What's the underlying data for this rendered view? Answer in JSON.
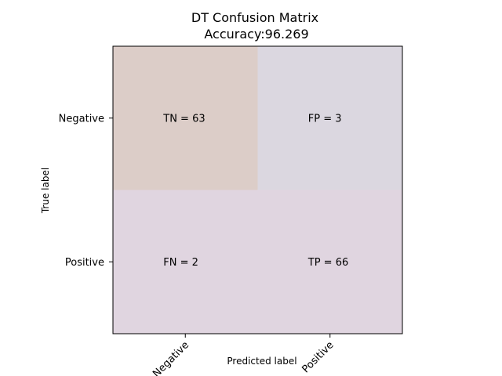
{
  "chart_data": {
    "type": "heatmap",
    "title": "DT Confusion Matrix",
    "subtitle": "Accuracy:96.269",
    "xlabel": "Predicted label",
    "ylabel": "True label",
    "x_categories": [
      "Negative",
      "Positive"
    ],
    "y_categories": [
      "Negative",
      "Positive"
    ],
    "cell_labels": [
      [
        "TN",
        "FP"
      ],
      [
        "FN",
        "TP"
      ]
    ],
    "values": [
      [
        63,
        3
      ],
      [
        2,
        66
      ]
    ],
    "cell_texts": [
      [
        "TN = 63",
        "FP = 3"
      ],
      [
        "FN = 2",
        "TP = 66"
      ]
    ],
    "colors": [
      [
        "#dccdc8",
        "#dbd7e0"
      ],
      [
        "#e0d5e0",
        "#e0d5e0"
      ]
    ]
  }
}
